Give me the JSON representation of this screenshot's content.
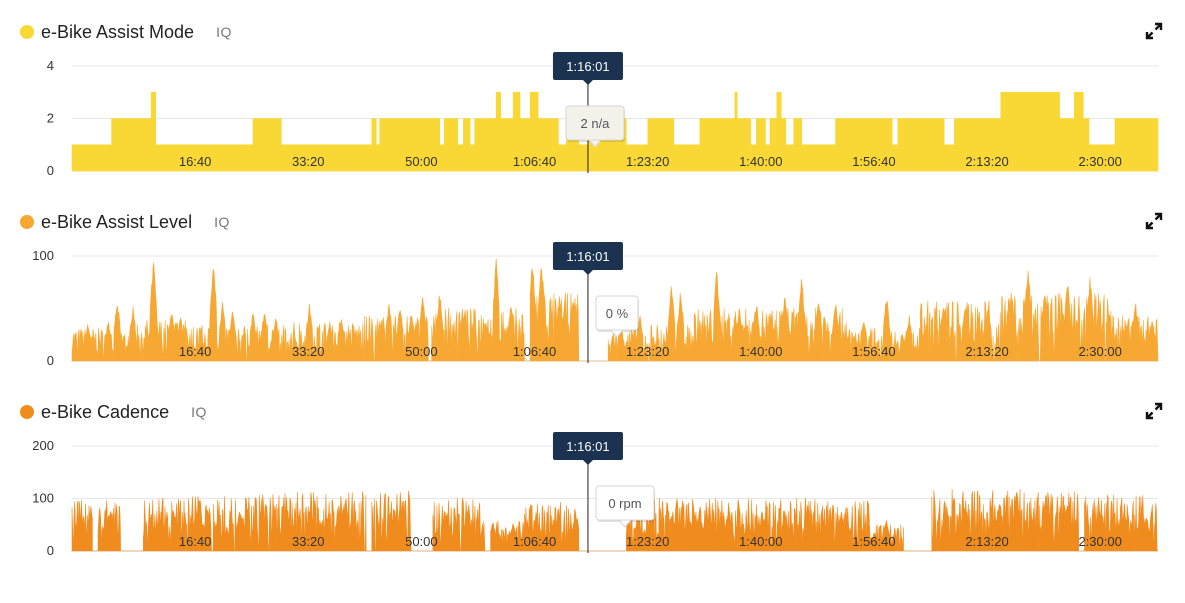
{
  "cursor_time": "1:16:01",
  "x_tick_labels": [
    "16:40",
    "33:20",
    "50:00",
    "1:06:40",
    "1:23:20",
    "1:40:00",
    "1:56:40",
    "2:13:20",
    "2:30:00"
  ],
  "x_tick_seconds": [
    1000,
    2000,
    3000,
    4000,
    5000,
    6000,
    7000,
    8000,
    9000
  ],
  "x_domain": [
    0,
    9600
  ],
  "cursor_seconds": 4561,
  "panels": [
    {
      "title": "e-Bike Assist Mode",
      "iq_label": "IQ",
      "color": "#f9d835",
      "expand_icon": "expand-icon",
      "tooltip": "2 n/a",
      "y_ticks": [
        "0",
        "2",
        "4"
      ],
      "y_tick_values": [
        0,
        2,
        4
      ]
    },
    {
      "title": "e-Bike Assist Level",
      "iq_label": "IQ",
      "color": "#f7a833",
      "expand_icon": "expand-icon",
      "tooltip": "0 %",
      "y_ticks": [
        "0",
        "100"
      ],
      "y_tick_values": [
        0,
        100
      ]
    },
    {
      "title": "e-Bike Cadence",
      "iq_label": "IQ",
      "color": "#f08c1e",
      "expand_icon": "expand-icon",
      "tooltip": "0 rpm",
      "y_ticks": [
        "0",
        "100",
        "200"
      ],
      "y_tick_values": [
        0,
        100,
        200
      ]
    }
  ],
  "chart_data": [
    {
      "type": "area",
      "title": "e-Bike Assist Mode",
      "xlabel": "",
      "ylabel": "",
      "ylim": [
        0,
        4
      ],
      "x_unit": "elapsed time (s)",
      "grid": true,
      "series": [
        {
          "values_step": [
            [
              0,
              1
            ],
            [
              350,
              1
            ],
            [
              350,
              2
            ],
            [
              700,
              2
            ],
            [
              700,
              3
            ],
            [
              740,
              3
            ],
            [
              740,
              1
            ],
            [
              1000,
              1
            ],
            [
              1000,
              1
            ],
            [
              1600,
              1
            ],
            [
              1600,
              2
            ],
            [
              1850,
              2
            ],
            [
              1850,
              1
            ],
            [
              2650,
              1
            ],
            [
              2650,
              2
            ],
            [
              2690,
              2
            ],
            [
              2690,
              1
            ],
            [
              2720,
              1
            ],
            [
              2720,
              2
            ],
            [
              3250,
              2
            ],
            [
              3250,
              1
            ],
            [
              3290,
              1
            ],
            [
              3290,
              2
            ],
            [
              3410,
              2
            ],
            [
              3410,
              1
            ],
            [
              3460,
              1
            ],
            [
              3460,
              2
            ],
            [
              3520,
              2
            ],
            [
              3520,
              1
            ],
            [
              3560,
              1
            ],
            [
              3560,
              2
            ],
            [
              3750,
              2
            ],
            [
              3750,
              3
            ],
            [
              3790,
              3
            ],
            [
              3790,
              2
            ],
            [
              3900,
              2
            ],
            [
              3900,
              3
            ],
            [
              3960,
              3
            ],
            [
              3960,
              2
            ],
            [
              4050,
              2
            ],
            [
              4050,
              3
            ],
            [
              4120,
              3
            ],
            [
              4120,
              2
            ],
            [
              4300,
              2
            ],
            [
              4300,
              1
            ],
            [
              4370,
              1
            ],
            [
              4370,
              2
            ],
            [
              4480,
              2
            ],
            [
              4480,
              1
            ],
            [
              4561,
              1
            ],
            [
              4561,
              2
            ],
            [
              4900,
              2
            ],
            [
              4900,
              1
            ],
            [
              5090,
              1
            ],
            [
              5090,
              2
            ],
            [
              5320,
              2
            ],
            [
              5320,
              1
            ],
            [
              5550,
              1
            ],
            [
              5550,
              2
            ],
            [
              5860,
              2
            ],
            [
              5860,
              3
            ],
            [
              5880,
              3
            ],
            [
              5880,
              2
            ],
            [
              6000,
              2
            ],
            [
              6000,
              1
            ],
            [
              6050,
              1
            ],
            [
              6050,
              2
            ],
            [
              6130,
              2
            ],
            [
              6130,
              1
            ],
            [
              6170,
              1
            ],
            [
              6170,
              2
            ],
            [
              6230,
              2
            ],
            [
              6230,
              3
            ],
            [
              6270,
              3
            ],
            [
              6270,
              2
            ],
            [
              6310,
              2
            ],
            [
              6310,
              1
            ],
            [
              6380,
              1
            ],
            [
              6380,
              2
            ],
            [
              6450,
              2
            ],
            [
              6450,
              1
            ],
            [
              6750,
              1
            ],
            [
              6750,
              2
            ],
            [
              7250,
              2
            ],
            [
              7250,
              1
            ],
            [
              7300,
              1
            ],
            [
              7300,
              2
            ],
            [
              7710,
              2
            ],
            [
              7710,
              1
            ],
            [
              7800,
              1
            ],
            [
              7800,
              2
            ],
            [
              8210,
              2
            ],
            [
              8210,
              3
            ],
            [
              8730,
              3
            ],
            [
              8730,
              2
            ],
            [
              8860,
              2
            ],
            [
              8860,
              3
            ],
            [
              8940,
              3
            ],
            [
              8940,
              2
            ],
            [
              8990,
              2
            ],
            [
              8990,
              1
            ],
            [
              9220,
              1
            ],
            [
              9220,
              2
            ],
            [
              9600,
              2
            ]
          ],
          "approx": true
        }
      ]
    },
    {
      "type": "area",
      "title": "e-Bike Assist Level",
      "xlabel": "",
      "ylabel": "%",
      "ylim": [
        0,
        100
      ],
      "x_unit": "elapsed time (s)",
      "grid": true,
      "approx_envelope": [
        {
          "x_range": [
            0,
            560
          ],
          "mean": 22,
          "peaks": [
            [
              140,
              38
            ],
            [
              320,
              40
            ],
            [
              400,
              60
            ],
            [
              540,
              55
            ]
          ]
        },
        {
          "x_range": [
            560,
            1000
          ],
          "mean": 28,
          "peaks": [
            [
              720,
              100
            ],
            [
              880,
              50
            ],
            [
              960,
              45
            ]
          ]
        },
        {
          "x_range": [
            1000,
            1650
          ],
          "mean": 24,
          "peaks": [
            [
              1000,
              40
            ],
            [
              1250,
              100
            ],
            [
              1330,
              58
            ],
            [
              1420,
              50
            ],
            [
              1600,
              48
            ]
          ]
        },
        {
          "x_range": [
            1650,
            2560
          ],
          "mean": 26,
          "peaks": [
            [
              1700,
              50
            ],
            [
              1800,
              42
            ],
            [
              2100,
              56
            ],
            [
              2280,
              38
            ],
            [
              2380,
              45
            ]
          ]
        },
        {
          "x_range": [
            2560,
            3150
          ],
          "mean": 30,
          "peaks": [
            [
              2800,
              58
            ],
            [
              2900,
              55
            ],
            [
              3000,
              48
            ],
            [
              3100,
              65
            ]
          ]
        },
        {
          "x_range": [
            3180,
            4000
          ],
          "mean": 35,
          "peaks": [
            [
              3250,
              68
            ],
            [
              3450,
              50
            ],
            [
              3650,
              42
            ],
            [
              3750,
              100
            ],
            [
              3880,
              56
            ]
          ]
        },
        {
          "x_range": [
            4050,
            4480
          ],
          "mean": 45,
          "peaks": [
            [
              4070,
              100
            ],
            [
              4150,
              100
            ],
            [
              4310,
              65
            ],
            [
              4430,
              60
            ]
          ]
        },
        {
          "x_range": [
            4561,
            4740
          ],
          "mean": 0
        },
        {
          "x_range": [
            4740,
            5090
          ],
          "mean": 22,
          "peaks": [
            [
              4850,
              38
            ],
            [
              5020,
              45
            ]
          ]
        },
        {
          "x_range": [
            5100,
            5500
          ],
          "mean": 25,
          "peaks": [
            [
              5300,
              78
            ],
            [
              5380,
              70
            ]
          ]
        },
        {
          "x_range": [
            5500,
            6850
          ],
          "mean": 35,
          "peaks": [
            [
              5700,
              90
            ],
            [
              5900,
              55
            ],
            [
              6050,
              58
            ],
            [
              6300,
              65
            ],
            [
              6450,
              82
            ],
            [
              6600,
              60
            ],
            [
              6750,
              60
            ]
          ]
        },
        {
          "x_range": [
            6850,
            7500
          ],
          "mean": 22,
          "peaks": [
            [
              7000,
              40
            ],
            [
              7200,
              65
            ],
            [
              7400,
              45
            ]
          ]
        },
        {
          "x_range": [
            7500,
            8200
          ],
          "mean": 40,
          "peaks": [
            [
              7700,
              55
            ],
            [
              7900,
              60
            ],
            [
              8100,
              55
            ]
          ]
        },
        {
          "x_range": [
            8200,
            9200
          ],
          "mean": 45,
          "peaks": [
            [
              8300,
              70
            ],
            [
              8450,
              95
            ],
            [
              8600,
              75
            ],
            [
              8800,
              82
            ],
            [
              9000,
              85
            ]
          ]
        },
        {
          "x_range": [
            9200,
            9600
          ],
          "mean": 30,
          "peaks": [
            [
              9400,
              60
            ],
            [
              9550,
              40
            ]
          ]
        }
      ]
    },
    {
      "type": "area",
      "title": "e-Bike Cadence",
      "xlabel": "",
      "ylabel": "rpm",
      "ylim": [
        0,
        200
      ],
      "x_unit": "elapsed time (s)",
      "grid": true,
      "approx_envelope": [
        {
          "x_range": [
            0,
            180
          ],
          "mean": 68,
          "peaks": [
            [
              100,
              72
            ]
          ]
        },
        {
          "x_range": [
            230,
            430
          ],
          "mean": 70,
          "peaks": [
            [
              340,
              85
            ]
          ]
        },
        {
          "x_range": [
            630,
            1000
          ],
          "mean": 70,
          "peaks": [
            [
              700,
              75
            ],
            [
              900,
              80
            ]
          ]
        },
        {
          "x_range": [
            1000,
            1650
          ],
          "mean": 72,
          "peaks": [
            [
              1100,
              80
            ],
            [
              1200,
              85
            ],
            [
              1480,
              80
            ]
          ]
        },
        {
          "x_range": [
            1650,
            2600
          ],
          "mean": 78,
          "peaks": [
            [
              1900,
              85
            ],
            [
              2100,
              84
            ],
            [
              2400,
              88
            ]
          ]
        },
        {
          "x_range": [
            2650,
            3000
          ],
          "mean": 80,
          "peaks": [
            [
              2850,
              85
            ]
          ]
        },
        {
          "x_range": [
            3190,
            3650
          ],
          "mean": 72,
          "peaks": [
            [
              3300,
              80
            ],
            [
              3500,
              82
            ]
          ]
        },
        {
          "x_range": [
            3700,
            4000
          ],
          "mean": 40,
          "peaks": [
            [
              3720,
              60
            ],
            [
              3900,
              55
            ]
          ]
        },
        {
          "x_range": [
            4000,
            4480
          ],
          "mean": 65,
          "peaks": [
            [
              4100,
              70
            ],
            [
              4300,
              72
            ],
            [
              4450,
              78
            ]
          ]
        },
        {
          "x_range": [
            4561,
            4900
          ],
          "mean": 0
        },
        {
          "x_range": [
            4900,
            5150
          ],
          "mean": 60,
          "peaks": [
            [
              5000,
              70
            ]
          ]
        },
        {
          "x_range": [
            5150,
            6400
          ],
          "mean": 70,
          "peaks": [
            [
              5300,
              75
            ],
            [
              5500,
              78
            ],
            [
              5800,
              80
            ],
            [
              6100,
              78
            ],
            [
              6300,
              75
            ]
          ]
        },
        {
          "x_range": [
            6400,
            7050
          ],
          "mean": 70,
          "peaks": [
            [
              6500,
              78
            ],
            [
              6800,
              80
            ]
          ]
        },
        {
          "x_range": [
            7050,
            7350
          ],
          "mean": 35,
          "peaks": [
            [
              7200,
              60
            ]
          ]
        },
        {
          "x_range": [
            7600,
            8900
          ],
          "mean": 82,
          "peaks": [
            [
              7900,
              90
            ],
            [
              8200,
              95
            ],
            [
              8350,
              125
            ],
            [
              8600,
              100
            ],
            [
              8800,
              95
            ]
          ]
        },
        {
          "x_range": [
            8950,
            9600
          ],
          "mean": 75,
          "peaks": [
            [
              9100,
              85
            ],
            [
              9300,
              80
            ],
            [
              9500,
              65
            ]
          ]
        }
      ]
    }
  ]
}
